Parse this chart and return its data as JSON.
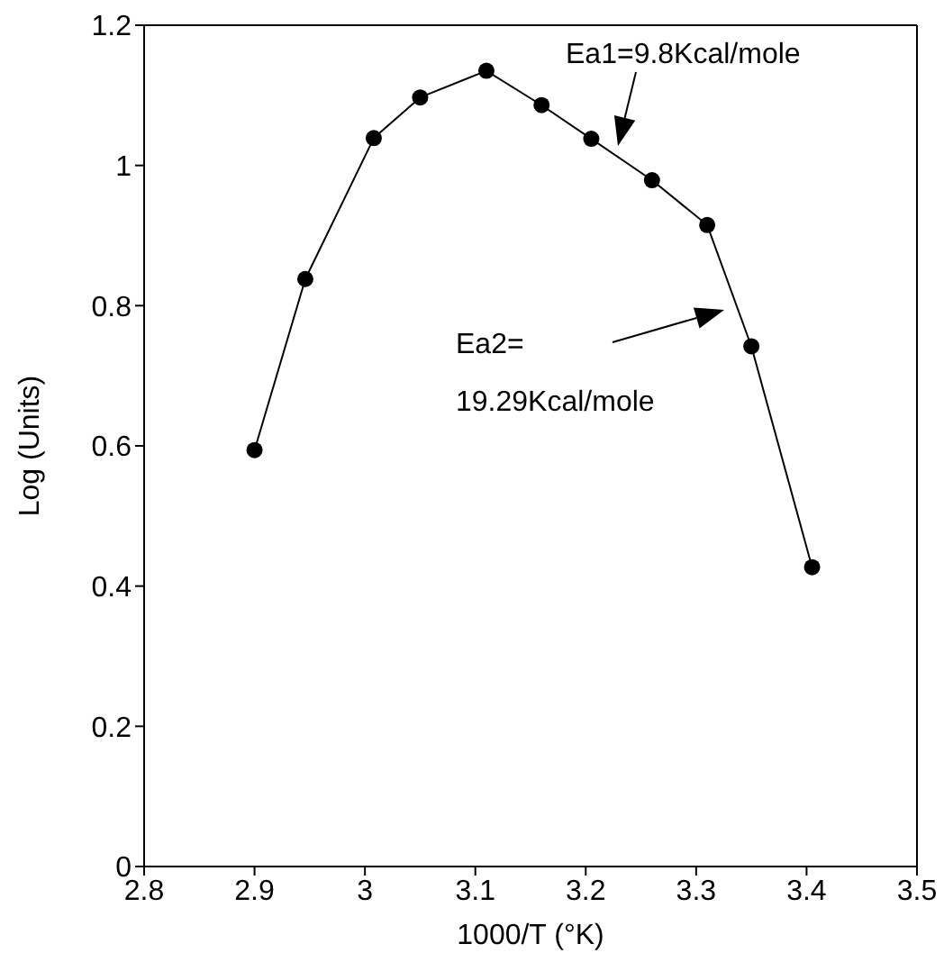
{
  "chart_data": {
    "type": "line",
    "xlabel": "1000/T (°K)",
    "ylabel": "Log (Units)",
    "x": [
      2.9,
      2.946,
      3.008,
      3.05,
      3.11,
      3.16,
      3.205,
      3.26,
      3.31,
      3.35,
      3.405
    ],
    "series": [
      {
        "color": "#000000",
        "values": [
          0.594,
          0.838,
          1.039,
          1.097,
          1.135,
          1.086,
          1.038,
          0.979,
          0.915,
          0.742,
          0.427
        ]
      }
    ],
    "xlim": [
      2.8,
      3.5
    ],
    "xticks": [
      2.8,
      2.9,
      3,
      3.1,
      3.2,
      3.3,
      3.4,
      3.5
    ],
    "ylim": [
      0,
      1.2
    ],
    "yticks": [
      0,
      0.2,
      0.4,
      0.6,
      0.8,
      1,
      1.2
    ],
    "marker": "circle",
    "line_style": "solid",
    "grid": false,
    "legend": false,
    "annotations": [
      "Ea1=9.8Kcal/mole",
      "Ea2=\n19.29Kcal/mole"
    ]
  }
}
